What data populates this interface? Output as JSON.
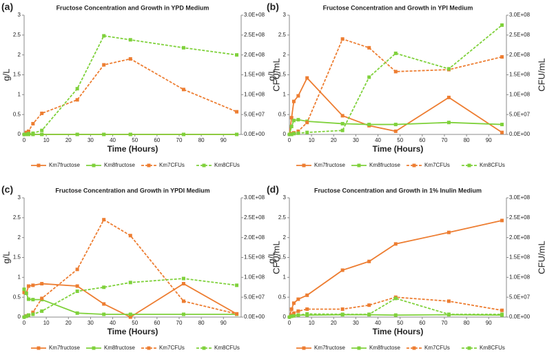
{
  "chart_data": [
    {
      "type": "line",
      "label": "(a)",
      "title": "Fructose Concentration and Growth in YPD Medium",
      "xlabel": "Time (Hours)",
      "ylabel": "g/L",
      "y2label": "CFU/mL",
      "xlim": [
        0,
        98
      ],
      "xticks": [
        0,
        10,
        20,
        30,
        40,
        50,
        60,
        70,
        80,
        90
      ],
      "ylim": [
        0,
        3
      ],
      "yticks": [
        0,
        0.5,
        1,
        1.5,
        2,
        2.5,
        3
      ],
      "y2lim": [
        0,
        300000000
      ],
      "y2ticks": [
        {
          "value": 0,
          "label": "0.0E+00"
        },
        {
          "value": 50000000,
          "label": "5.0E+07"
        },
        {
          "value": 100000000,
          "label": "1.0E+08"
        },
        {
          "value": 150000000,
          "label": "1.5E+08"
        },
        {
          "value": 200000000,
          "label": "2.0E+08"
        },
        {
          "value": 250000000,
          "label": "2.5E+08"
        },
        {
          "value": 300000000,
          "label": "3.0E+08"
        }
      ],
      "x": [
        0,
        1,
        2,
        4,
        8,
        24,
        36,
        48,
        72,
        96
      ],
      "series": [
        {
          "name": "Km7fructose",
          "color": "#ed7d31",
          "dashed": false,
          "values": [
            0,
            0,
            0,
            0,
            0,
            0,
            0,
            0,
            0,
            0
          ]
        },
        {
          "name": "Km8fructose",
          "color": "#7fd13b",
          "dashed": false,
          "values": [
            0,
            0,
            0,
            0,
            0,
            0,
            0,
            0,
            0,
            0
          ]
        },
        {
          "name": "Km7CFUs",
          "color": "#ed7d31",
          "dashed": true,
          "axis": "y2",
          "values": [
            0,
            5000000,
            8000000,
            27000000,
            53000000,
            87000000,
            175000000,
            190000000,
            113000000,
            57000000
          ]
        },
        {
          "name": "Km8CFUs",
          "color": "#7fd13b",
          "dashed": true,
          "axis": "y2",
          "values": [
            0,
            0,
            2000000,
            3000000,
            10000000,
            115000000,
            248000000,
            238000000,
            218000000,
            200000000
          ]
        }
      ]
    },
    {
      "type": "line",
      "label": "(b)",
      "title": "Fructose Concentration and Growth in YPI Medium",
      "xlabel": "Time (Hours)",
      "ylabel": "g/L",
      "y2label": "CFU/mL",
      "xlim": [
        0,
        98
      ],
      "xticks": [
        0,
        10,
        20,
        30,
        40,
        50,
        60,
        70,
        80,
        90
      ],
      "ylim": [
        0,
        3
      ],
      "yticks": [
        0,
        0.5,
        1,
        1.5,
        2,
        2.5,
        3
      ],
      "y2lim": [
        0,
        300000000
      ],
      "y2ticks": [
        {
          "value": 0,
          "label": "0.0E+00"
        },
        {
          "value": 50000000,
          "label": "5.0E+07"
        },
        {
          "value": 100000000,
          "label": "1.0E+08"
        },
        {
          "value": 150000000,
          "label": "1.5E+08"
        },
        {
          "value": 200000000,
          "label": "2.0E+08"
        },
        {
          "value": 250000000,
          "label": "2.5E+08"
        },
        {
          "value": 300000000,
          "label": "3.0E+08"
        }
      ],
      "x": [
        0,
        1,
        2,
        4,
        8,
        24,
        36,
        48,
        72,
        96
      ],
      "series": [
        {
          "name": "Km7fructose",
          "color": "#ed7d31",
          "dashed": false,
          "values": [
            0,
            0.42,
            0.83,
            0.97,
            1.42,
            0.47,
            0.22,
            0.08,
            0.93,
            0.05
          ]
        },
        {
          "name": "Km8fructose",
          "color": "#7fd13b",
          "dashed": false,
          "values": [
            0,
            0.2,
            0.35,
            0.37,
            0.33,
            0.27,
            0.25,
            0.25,
            0.3,
            0.25
          ]
        },
        {
          "name": "Km7CFUs",
          "color": "#ed7d31",
          "dashed": true,
          "axis": "y2",
          "values": [
            0,
            2000000,
            4000000,
            8000000,
            30000000,
            240000000,
            218000000,
            158000000,
            163000000,
            195000000
          ]
        },
        {
          "name": "Km8CFUs",
          "color": "#7fd13b",
          "dashed": true,
          "axis": "y2",
          "values": [
            0,
            0,
            2000000,
            3000000,
            5000000,
            10000000,
            144000000,
            204000000,
            165000000,
            275000000
          ]
        }
      ]
    },
    {
      "type": "line",
      "label": "(c)",
      "title": "Fructose Concentration and Growth in YPDI Medium",
      "xlabel": "Time (Hours)",
      "ylabel": "g/L",
      "y2label": "CFU/mL",
      "xlim": [
        0,
        98
      ],
      "xticks": [
        0,
        10,
        20,
        30,
        40,
        50,
        60,
        70,
        80,
        90
      ],
      "ylim": [
        0,
        3
      ],
      "yticks": [
        0,
        0.5,
        1,
        1.5,
        2,
        2.5,
        3
      ],
      "y2lim": [
        0,
        300000000
      ],
      "y2ticks": [
        {
          "value": 0,
          "label": "0.0E+00"
        },
        {
          "value": 50000000,
          "label": "5.0E+07"
        },
        {
          "value": 100000000,
          "label": "1.0E+08"
        },
        {
          "value": 150000000,
          "label": "1.5E+08"
        },
        {
          "value": 200000000,
          "label": "2.0E+08"
        },
        {
          "value": 250000000,
          "label": "2.5E+08"
        },
        {
          "value": 300000000,
          "label": "3.0E+08"
        }
      ],
      "x": [
        0,
        1,
        2,
        4,
        8,
        24,
        36,
        48,
        72,
        96
      ],
      "series": [
        {
          "name": "Km7fructose",
          "color": "#ed7d31",
          "dashed": false,
          "values": [
            0.62,
            0.6,
            0.78,
            0.8,
            0.84,
            0.78,
            0.33,
            0,
            0.84,
            0.08
          ]
        },
        {
          "name": "Km8fructose",
          "color": "#7fd13b",
          "dashed": false,
          "values": [
            0.7,
            0.6,
            0.45,
            0.44,
            0.44,
            0.1,
            0.07,
            0.07,
            0.07,
            0.07
          ]
        },
        {
          "name": "Km7CFUs",
          "color": "#ed7d31",
          "dashed": true,
          "axis": "y2",
          "values": [
            0,
            3000000,
            5000000,
            12000000,
            47000000,
            120000000,
            245000000,
            205000000,
            40000000,
            8000000
          ]
        },
        {
          "name": "Km8CFUs",
          "color": "#7fd13b",
          "dashed": true,
          "axis": "y2",
          "values": [
            0,
            2000000,
            5000000,
            7000000,
            15000000,
            65000000,
            75000000,
            87000000,
            97000000,
            80000000
          ]
        }
      ]
    },
    {
      "type": "line",
      "label": "(d)",
      "title": "Fructose Concentration and Growth in 1% Inulin Medium",
      "xlabel": "Time (Hours)",
      "ylabel": "g/L",
      "y2label": "CFU/mL",
      "xlim": [
        0,
        98
      ],
      "xticks": [
        0,
        10,
        20,
        30,
        40,
        50,
        60,
        70,
        80,
        90
      ],
      "ylim": [
        0,
        3
      ],
      "yticks": [
        0,
        0.5,
        1,
        1.5,
        2,
        2.5,
        3
      ],
      "y2lim": [
        0,
        300000000
      ],
      "y2ticks": [
        {
          "value": 0,
          "label": "0.0E+00"
        },
        {
          "value": 50000000,
          "label": "5.0E+07"
        },
        {
          "value": 100000000,
          "label": "1.0E+08"
        },
        {
          "value": 150000000,
          "label": "1.5E+08"
        },
        {
          "value": 200000000,
          "label": "2.0E+08"
        },
        {
          "value": 250000000,
          "label": "2.5E+08"
        },
        {
          "value": 300000000,
          "label": "3.0E+08"
        }
      ],
      "x": [
        0,
        1,
        2,
        4,
        8,
        24,
        36,
        48,
        72,
        96
      ],
      "series": [
        {
          "name": "Km7fructose",
          "color": "#ed7d31",
          "dashed": false,
          "values": [
            0,
            0.2,
            0.35,
            0.45,
            0.55,
            1.18,
            1.4,
            1.84,
            2.13,
            2.43
          ]
        },
        {
          "name": "Km8fructose",
          "color": "#7fd13b",
          "dashed": false,
          "values": [
            0,
            0.03,
            0.04,
            0.05,
            0.05,
            0.06,
            0.06,
            0.05,
            0.06,
            0.05
          ]
        },
        {
          "name": "Km7CFUs",
          "color": "#ed7d31",
          "dashed": true,
          "axis": "y2",
          "values": [
            0,
            5000000,
            10000000,
            15000000,
            20000000,
            20000000,
            30000000,
            50000000,
            40000000,
            17000000
          ]
        },
        {
          "name": "Km8CFUs",
          "color": "#7fd13b",
          "dashed": true,
          "axis": "y2",
          "values": [
            0,
            2000000,
            3000000,
            5000000,
            8000000,
            7000000,
            7000000,
            47000000,
            7000000,
            7000000
          ]
        }
      ]
    }
  ]
}
